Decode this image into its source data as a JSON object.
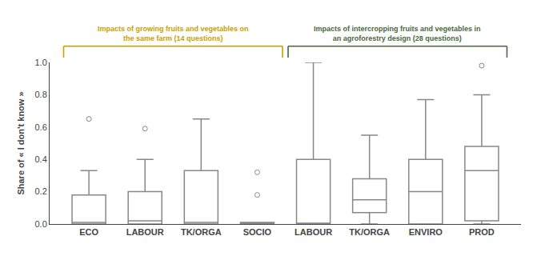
{
  "chart_data": {
    "type": "box",
    "categories": [
      "ECO",
      "LABOUR",
      "TK/ORGA",
      "SOCIO",
      "LABOUR",
      "TK/ORGA",
      "ENVIRO",
      "PROD"
    ],
    "ylabel": "Share of « I don't know »",
    "ylim": [
      0.0,
      1.0
    ],
    "yticks": [
      {
        "value": 0.0,
        "label": "0.0"
      },
      0.2,
      0.4,
      0.6,
      0.8,
      {
        "value": 1.0,
        "label": "1.0"
      }
    ],
    "grid": false,
    "color": "#888888",
    "boxes": [
      {
        "q1": 0.0,
        "median": 0.01,
        "q3": 0.18,
        "whislo": 0.0,
        "whishi": 0.33,
        "fliers": [
          0.65
        ]
      },
      {
        "q1": 0.0,
        "median": 0.02,
        "q3": 0.2,
        "whislo": 0.0,
        "whishi": 0.4,
        "fliers": [
          0.59
        ]
      },
      {
        "q1": 0.0,
        "median": 0.01,
        "q3": 0.33,
        "whislo": 0.0,
        "whishi": 0.65,
        "fliers": []
      },
      {
        "q1": 0.0,
        "median": 0.01,
        "q3": 0.01,
        "whislo": 0.0,
        "whishi": 0.01,
        "fliers": [
          0.18,
          0.32
        ]
      },
      {
        "q1": 0.0,
        "median": 0.0,
        "q3": 0.4,
        "whislo": 0.0,
        "whishi": 1.0,
        "fliers": []
      },
      {
        "q1": 0.07,
        "median": 0.15,
        "q3": 0.28,
        "whislo": 0.0,
        "whishi": 0.55,
        "fliers": []
      },
      {
        "q1": 0.0,
        "median": 0.2,
        "q3": 0.4,
        "whislo": 0.0,
        "whishi": 0.77,
        "fliers": []
      },
      {
        "q1": 0.02,
        "median": 0.33,
        "q3": 0.48,
        "whislo": 0.0,
        "whishi": 0.8,
        "fliers": [
          0.98
        ]
      }
    ],
    "groups": [
      {
        "label": "Impacts of growing fruits and vegetables on\nthe same farm (14 questions)",
        "color": "#C8A000",
        "first": 0,
        "last": 3
      },
      {
        "label": "Impacts of intercropping fruits and vegetables in\nan agroforestry design (28 questions)",
        "color": "#4A6741",
        "first": 4,
        "last": 7
      }
    ]
  }
}
